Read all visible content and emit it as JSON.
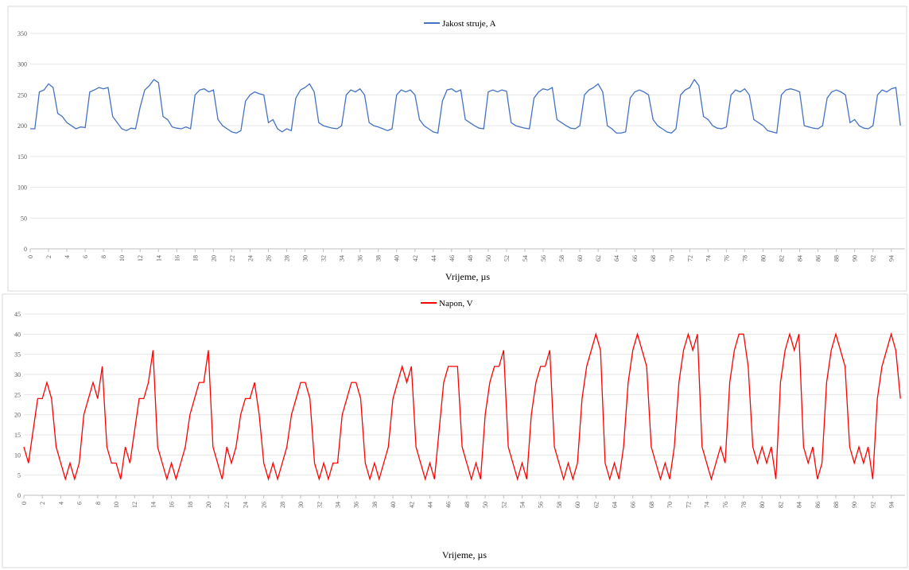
{
  "chart_data": [
    {
      "type": "line",
      "x_label": "Vrijeme,  µs",
      "grid": true,
      "legend": "top",
      "x": [
        0,
        0.5,
        1,
        1.5,
        2,
        2.5,
        3,
        3.5,
        4,
        4.5,
        5,
        5.5,
        6,
        6.5,
        7,
        7.5,
        8,
        8.5,
        9,
        9.5,
        10,
        10.5,
        11,
        11.5,
        12,
        12.5,
        13,
        13.5,
        14,
        14.5,
        15,
        15.5,
        16,
        16.5,
        17,
        17.5,
        18,
        18.5,
        19,
        19.5,
        20,
        20.5,
        21,
        21.5,
        22,
        22.5,
        23,
        23.5,
        24,
        24.5,
        25,
        25.5,
        26,
        26.5,
        27,
        27.5,
        28,
        28.5,
        29,
        29.5,
        30,
        30.5,
        31,
        31.5,
        32,
        32.5,
        33,
        33.5,
        34,
        34.5,
        35,
        35.5,
        36,
        36.5,
        37,
        37.5,
        38,
        38.5,
        39,
        39.5,
        40,
        40.5,
        41,
        41.5,
        42,
        42.5,
        43,
        43.5,
        44,
        44.5,
        45,
        45.5,
        46,
        46.5,
        47,
        47.5,
        48,
        48.5,
        49,
        49.5,
        50,
        50.5,
        51,
        51.5,
        52,
        52.5,
        53,
        53.5,
        54,
        54.5,
        55,
        55.5,
        56,
        56.5,
        57,
        57.5,
        58,
        58.5,
        59,
        59.5,
        60,
        60.5,
        61,
        61.5,
        62,
        62.5,
        63,
        63.5,
        64,
        64.5,
        65,
        65.5,
        66,
        66.5,
        67,
        67.5,
        68,
        68.5,
        69,
        69.5,
        70,
        70.5,
        71,
        71.5,
        72,
        72.5,
        73,
        73.5,
        74,
        74.5,
        75,
        75.5,
        76,
        76.5,
        77,
        77.5,
        78,
        78.5,
        79,
        79.5,
        80,
        80.5,
        81,
        81.5,
        82,
        82.5,
        83,
        83.5,
        84,
        84.5,
        85,
        85.5,
        86,
        86.5,
        87,
        87.5,
        88,
        88.5,
        89,
        89.5,
        90,
        90.5,
        91,
        91.5,
        92,
        92.5,
        93,
        93.5,
        94,
        94.5,
        95
      ],
      "series": [
        {
          "name": "Jakost struje, A",
          "color": "#4472c4",
          "values": [
            195,
            195,
            255,
            258,
            268,
            262,
            220,
            215,
            205,
            200,
            195,
            198,
            197,
            255,
            258,
            262,
            260,
            262,
            215,
            205,
            195,
            192,
            196,
            195,
            230,
            258,
            265,
            275,
            270,
            215,
            210,
            198,
            196,
            195,
            198,
            195,
            250,
            258,
            260,
            255,
            258,
            210,
            200,
            195,
            190,
            188,
            192,
            240,
            250,
            255,
            252,
            250,
            205,
            210,
            195,
            190,
            195,
            192,
            245,
            258,
            262,
            268,
            255,
            205,
            200,
            198,
            196,
            195,
            200,
            250,
            258,
            255,
            260,
            250,
            205,
            200,
            198,
            195,
            192,
            195,
            250,
            258,
            255,
            258,
            250,
            210,
            200,
            195,
            190,
            188,
            240,
            258,
            260,
            255,
            258,
            210,
            205,
            200,
            196,
            195,
            255,
            258,
            255,
            258,
            256,
            205,
            200,
            198,
            196,
            195,
            245,
            255,
            260,
            258,
            262,
            210,
            205,
            200,
            196,
            195,
            200,
            250,
            258,
            262,
            268,
            255,
            200,
            195,
            188,
            188,
            190,
            245,
            255,
            258,
            255,
            250,
            210,
            200,
            195,
            190,
            188,
            195,
            250,
            258,
            262,
            275,
            265,
            215,
            210,
            200,
            196,
            195,
            198,
            250,
            258,
            255,
            260,
            250,
            210,
            205,
            200,
            192,
            190,
            188,
            250,
            258,
            260,
            258,
            255,
            200,
            198,
            196,
            195,
            200,
            245,
            255,
            258,
            255,
            250,
            205,
            210,
            200,
            196,
            195,
            200,
            250,
            258,
            255,
            260,
            262,
            200
          ]
        }
      ],
      "xlim": [
        0,
        95.5
      ],
      "xticks": [
        0,
        2,
        4,
        6,
        8,
        10,
        12,
        14,
        16,
        18,
        20,
        22,
        24,
        26,
        28,
        30,
        32,
        34,
        36,
        38,
        40,
        42,
        44,
        46,
        48,
        50,
        52,
        54,
        56,
        58,
        60,
        62,
        64,
        66,
        68,
        70,
        72,
        74,
        76,
        78,
        80,
        82,
        84,
        86,
        88,
        90,
        92,
        94
      ],
      "ylim": [
        0,
        350
      ],
      "yticks": [
        0,
        50,
        100,
        150,
        200,
        250,
        300,
        350
      ]
    },
    {
      "type": "line",
      "x_label": "Vrijeme,  µs",
      "grid": true,
      "legend": "top",
      "x": [
        0,
        0.5,
        1,
        1.5,
        2,
        2.5,
        3,
        3.5,
        4,
        4.5,
        5,
        5.5,
        6,
        6.5,
        7,
        7.5,
        8,
        8.5,
        9,
        9.5,
        10,
        10.5,
        11,
        11.5,
        12,
        12.5,
        13,
        13.5,
        14,
        14.5,
        15,
        15.5,
        16,
        16.5,
        17,
        17.5,
        18,
        18.5,
        19,
        19.5,
        20,
        20.5,
        21,
        21.5,
        22,
        22.5,
        23,
        23.5,
        24,
        24.5,
        25,
        25.5,
        26,
        26.5,
        27,
        27.5,
        28,
        28.5,
        29,
        29.5,
        30,
        30.5,
        31,
        31.5,
        32,
        32.5,
        33,
        33.5,
        34,
        34.5,
        35,
        35.5,
        36,
        36.5,
        37,
        37.5,
        38,
        38.5,
        39,
        39.5,
        40,
        40.5,
        41,
        41.5,
        42,
        42.5,
        43,
        43.5,
        44,
        44.5,
        45,
        45.5,
        46,
        46.5,
        47,
        47.5,
        48,
        48.5,
        49,
        49.5,
        50,
        50.5,
        51,
        51.5,
        52,
        52.5,
        53,
        53.5,
        54,
        54.5,
        55,
        55.5,
        56,
        56.5,
        57,
        57.5,
        58,
        58.5,
        59,
        59.5,
        60,
        60.5,
        61,
        61.5,
        62,
        62.5,
        63,
        63.5,
        64,
        64.5,
        65,
        65.5,
        66,
        66.5,
        67,
        67.5,
        68,
        68.5,
        69,
        69.5,
        70,
        70.5,
        71,
        71.5,
        72,
        72.5,
        73,
        73.5,
        74,
        74.5,
        75,
        75.5,
        76,
        76.5,
        77,
        77.5,
        78,
        78.5,
        79,
        79.5,
        80,
        80.5,
        81,
        81.5,
        82,
        82.5,
        83,
        83.5,
        84,
        84.5,
        85,
        85.5,
        86,
        86.5,
        87,
        87.5,
        88,
        88.5,
        89,
        89.5,
        90,
        90.5,
        91,
        91.5,
        92,
        92.5,
        93,
        93.5,
        94,
        94.5,
        95
      ],
      "series": [
        {
          "name": "Napon, V",
          "color": "#ff0000",
          "values": [
            12,
            8,
            16,
            24,
            24,
            28,
            24,
            12,
            8,
            4,
            8,
            4,
            8,
            20,
            24,
            28,
            24,
            32,
            12,
            8,
            8,
            4,
            12,
            8,
            16,
            24,
            24,
            28,
            36,
            12,
            8,
            4,
            8,
            4,
            8,
            12,
            20,
            24,
            28,
            28,
            36,
            12,
            8,
            4,
            12,
            8,
            12,
            20,
            24,
            24,
            28,
            20,
            8,
            4,
            8,
            4,
            8,
            12,
            20,
            24,
            28,
            28,
            24,
            8,
            4,
            8,
            4,
            8,
            8,
            20,
            24,
            28,
            28,
            24,
            8,
            4,
            8,
            4,
            8,
            12,
            24,
            28,
            32,
            28,
            32,
            12,
            8,
            4,
            8,
            4,
            16,
            28,
            32,
            32,
            32,
            12,
            8,
            4,
            8,
            4,
            20,
            28,
            32,
            32,
            36,
            12,
            8,
            4,
            8,
            4,
            20,
            28,
            32,
            32,
            36,
            12,
            8,
            4,
            8,
            4,
            8,
            24,
            32,
            36,
            40,
            36,
            8,
            4,
            8,
            4,
            12,
            28,
            36,
            40,
            36,
            32,
            12,
            8,
            4,
            8,
            4,
            12,
            28,
            36,
            40,
            36,
            40,
            12,
            8,
            4,
            8,
            12,
            8,
            28,
            36,
            40,
            40,
            32,
            12,
            8,
            12,
            8,
            12,
            4,
            28,
            36,
            40,
            36,
            40,
            12,
            8,
            12,
            4,
            8,
            28,
            36,
            40,
            36,
            32,
            12,
            8,
            12,
            8,
            12,
            4,
            24,
            32,
            36,
            40,
            36,
            24
          ]
        }
      ],
      "xlim": [
        0,
        95.5
      ],
      "xticks": [
        0,
        2,
        4,
        6,
        8,
        10,
        12,
        14,
        16,
        18,
        20,
        22,
        24,
        26,
        28,
        30,
        32,
        34,
        36,
        38,
        40,
        42,
        44,
        46,
        48,
        50,
        52,
        54,
        56,
        58,
        60,
        62,
        64,
        66,
        68,
        70,
        72,
        74,
        76,
        78,
        80,
        82,
        84,
        86,
        88,
        90,
        92,
        94
      ],
      "ylim": [
        0,
        45
      ],
      "yticks": [
        0,
        5,
        10,
        15,
        20,
        25,
        30,
        35,
        40,
        45
      ]
    }
  ]
}
